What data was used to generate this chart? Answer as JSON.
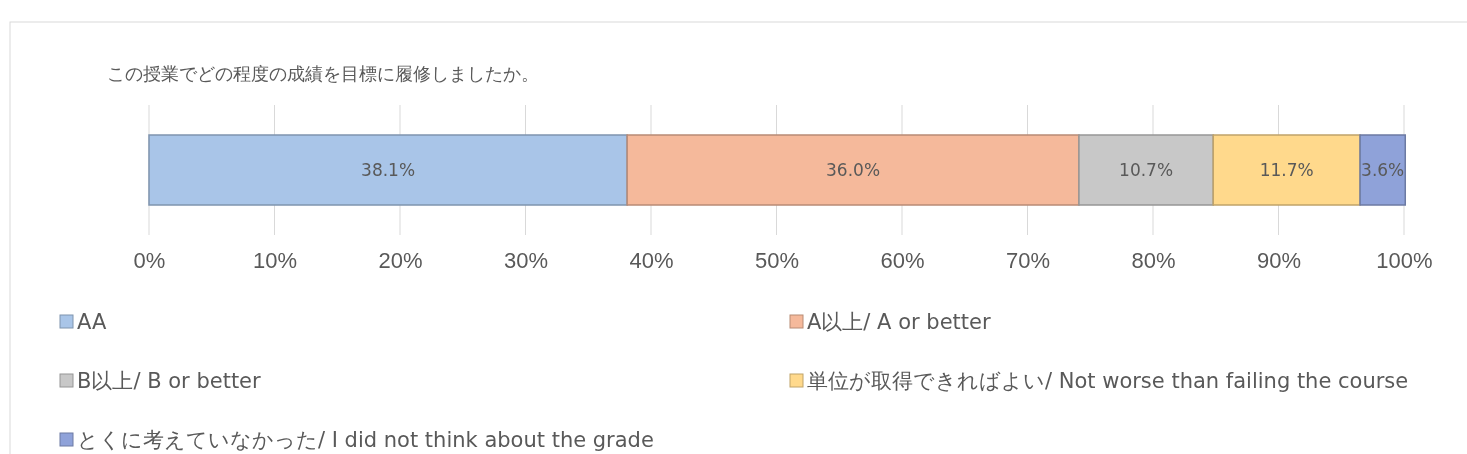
{
  "chart_data": {
    "type": "bar",
    "orientation": "horizontal",
    "stacked": true,
    "title": "この授業でどの程度の成績を目標に履修しましたか。",
    "categories": [
      null
    ],
    "series": [
      {
        "name": "AA",
        "color": "#a9c5e8",
        "values": [
          38.1
        ],
        "value_labels": [
          "38.1%"
        ]
      },
      {
        "name": "A以上/ A or better",
        "color": "#f5b99b",
        "values": [
          36.0
        ],
        "value_labels": [
          "36.0%"
        ]
      },
      {
        "name": "B以上/ B or better",
        "color": "#c8c8c8",
        "values": [
          10.7
        ],
        "value_labels": [
          "10.7%"
        ]
      },
      {
        "name": "単位が取得できればよい/ Not worse than failing the course",
        "color": "#ffd98c",
        "values": [
          11.7
        ],
        "value_labels": [
          "11.7%"
        ]
      },
      {
        "name": "とくに考えていなかった/ I did not think about the grade",
        "color": "#8fa2d9",
        "values": [
          3.6
        ],
        "value_labels": [
          "3.6%"
        ]
      }
    ],
    "xlim": [
      0,
      100
    ],
    "xticks": [
      {
        "value": 0,
        "label": "0%"
      },
      {
        "value": 10,
        "label": "10%"
      },
      {
        "value": 20,
        "label": "20%"
      },
      {
        "value": 30,
        "label": "30%"
      },
      {
        "value": 40,
        "label": "40%"
      },
      {
        "value": 50,
        "label": "50%"
      },
      {
        "value": 60,
        "label": "60%"
      },
      {
        "value": 70,
        "label": "70%"
      },
      {
        "value": 80,
        "label": "80%"
      },
      {
        "value": 90,
        "label": "90%"
      },
      {
        "value": 100,
        "label": "100%"
      }
    ],
    "grid": "x",
    "legend": "bottom"
  }
}
